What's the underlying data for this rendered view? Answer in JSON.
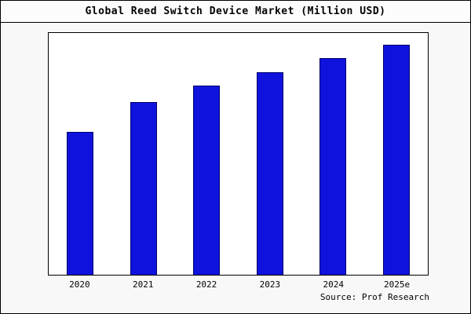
{
  "title": "Global Reed Switch Device Market (Million USD)",
  "source": "Source: Prof Research",
  "colors": {
    "bar_fill": "#0f12dd",
    "bar_border": "#00006a",
    "plot_background": "#ffffff",
    "page_background": "#f8f8f8",
    "axis": "#000000"
  },
  "chart_data": {
    "type": "bar",
    "title": "Global Reed Switch Device Market (Million USD)",
    "categories": [
      "2020",
      "2021",
      "2022",
      "2023",
      "2024",
      "2025e"
    ],
    "values": [
      62,
      75,
      82,
      88,
      94,
      100
    ],
    "xlabel": "",
    "ylabel": "",
    "ylim": [
      0,
      105
    ],
    "grid": false,
    "legend": false,
    "source": "Source: Prof Research"
  }
}
